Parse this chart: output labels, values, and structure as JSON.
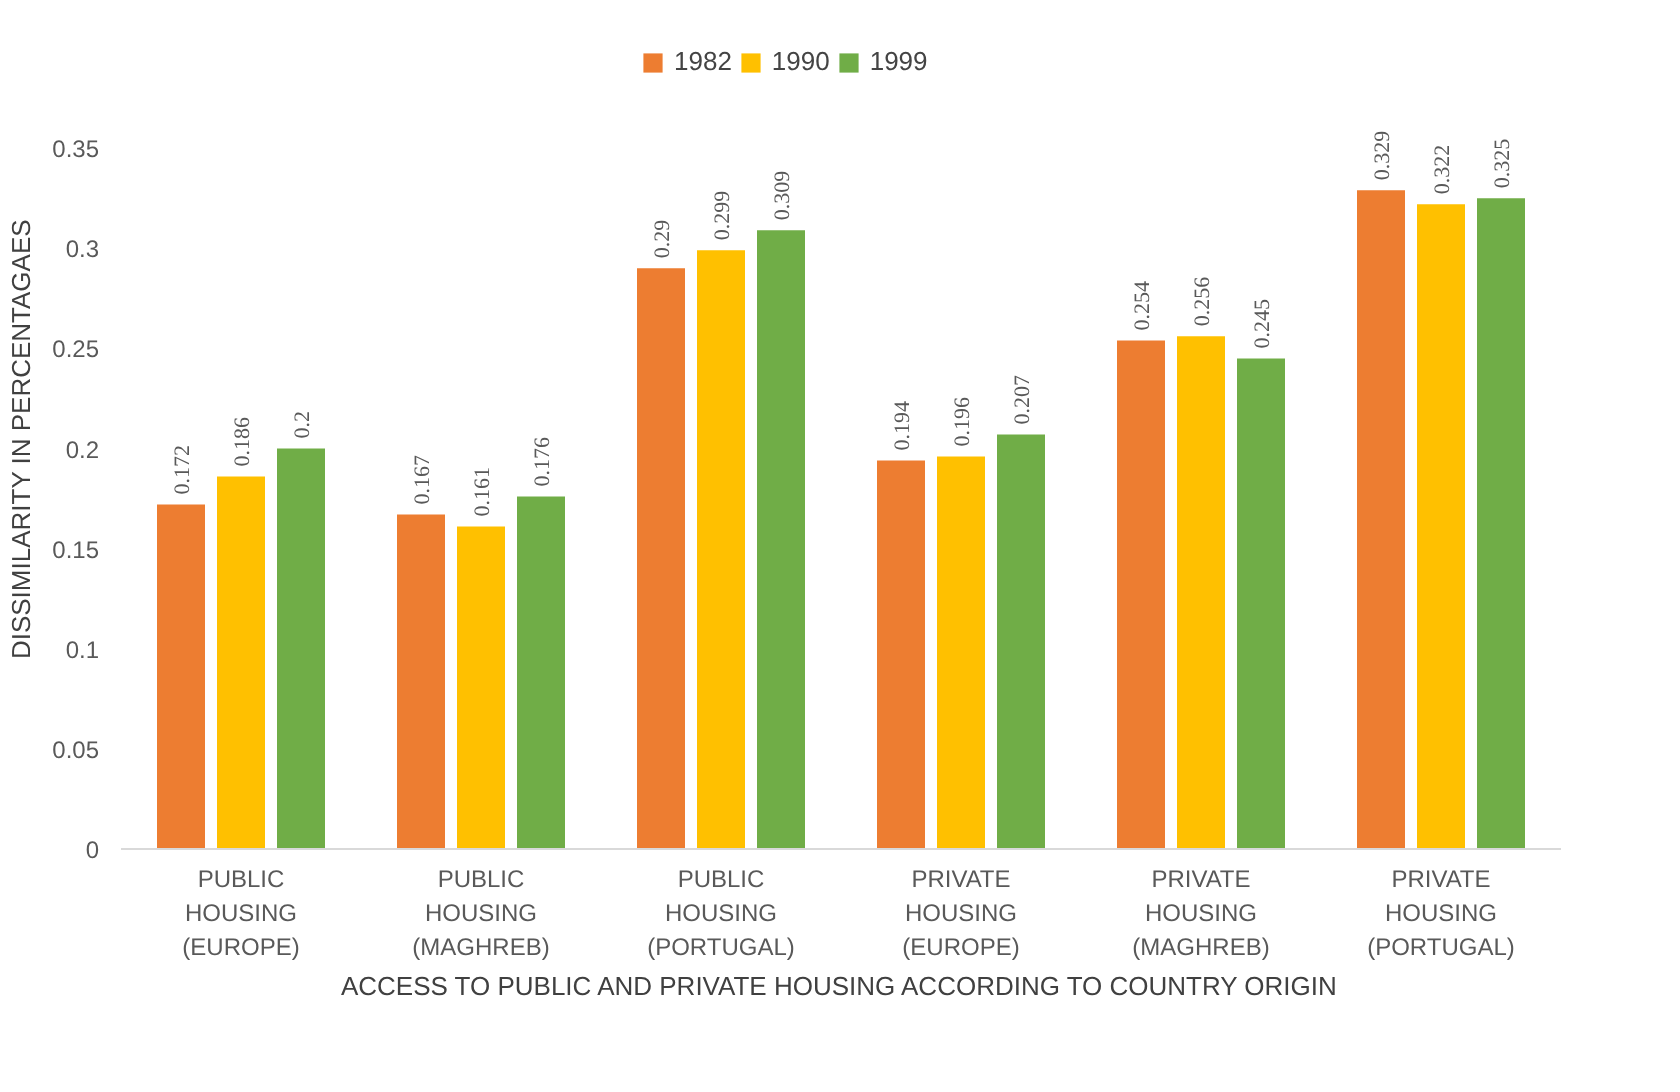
{
  "chart_data": {
    "type": "bar",
    "xlabel": "ACCESS TO PUBLIC AND PRIVATE HOUSING ACCORDING TO COUNTRY ORIGIN",
    "ylabel": "DISSIMILARITY IN PERCENTAGAES",
    "categories": [
      "PUBLIC\nHOUSING\n(EUROPE)",
      "PUBLIC\nHOUSING\n(MAGHREB)",
      "PUBLIC\nHOUSING\n(PORTUGAL)",
      "PRIVATE\nHOUSING\n(EUROPE)",
      "PRIVATE\nHOUSING\n(MAGHREB)",
      "PRIVATE\nHOUSING\n(PORTUGAL)"
    ],
    "series": [
      {
        "name": "1982",
        "color": "#ed7d31",
        "values": [
          0.172,
          0.167,
          0.29,
          0.194,
          0.254,
          0.329
        ]
      },
      {
        "name": "1990",
        "color": "#ffc000",
        "values": [
          0.186,
          0.161,
          0.299,
          0.196,
          0.256,
          0.322
        ]
      },
      {
        "name": "1999",
        "color": "#70ad47",
        "values": [
          0.2,
          0.176,
          0.309,
          0.207,
          0.245,
          0.325
        ]
      }
    ],
    "ylim": [
      0,
      0.35
    ],
    "yticks": [
      0,
      0.05,
      0.1,
      0.15,
      0.2,
      0.25,
      0.3,
      0.35
    ],
    "data_labels": true,
    "grid": false,
    "legend": "top"
  }
}
